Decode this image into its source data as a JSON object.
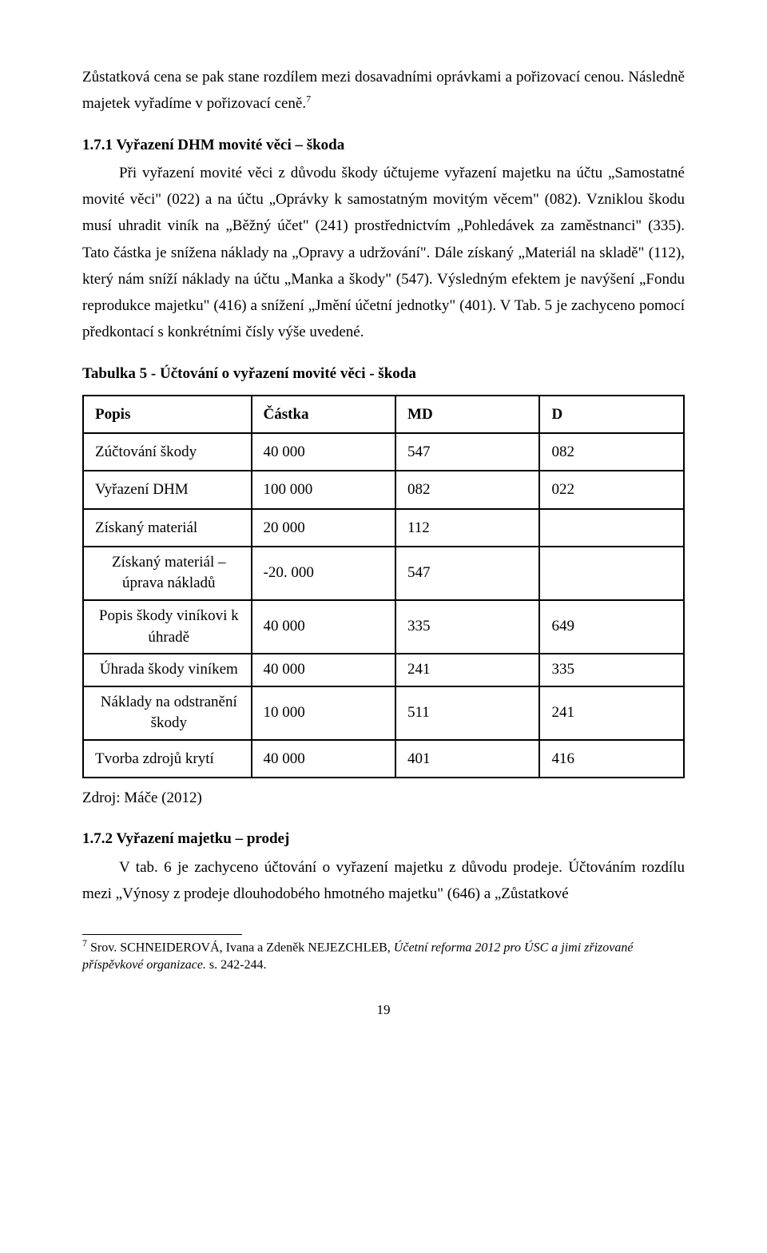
{
  "para_intro": "Zůstatková cena se pak stane rozdílem mezi dosavadními oprávkami a pořizovací cenou. Následně majetek vyřadíme v pořizovací ceně.",
  "intro_sup": "7",
  "h1": "1.7.1 Vyřazení DHM movité věci – škoda",
  "para1a": "Při vyřazení movité věci z důvodu škody účtujeme vyřazení majetku na účtu „Samostatné movité věci\" (022) a na účtu „Oprávky k samostatným movitým věcem\" (082). Vzniklou škodu musí uhradit viník na „Běžný účet\" (241) prostřednictvím „Pohledávek za zaměstnanci\" (335). Tato částka je snížena náklady na „Opravy a udržování\". Dále získaný „Materiál na skladě\" (112), který nám sníží náklady na účtu „Manka a škody\" (547). Výsledným efektem je navýšení „Fondu reprodukce majetku\" (416) a snížení „Jmění účetní jednotky\" (401). V Tab. 5 je zachyceno pomocí předkontací s konkrétními čísly výše uvedené.",
  "table_caption": "Tabulka 5 - Účtování o vyřazení movité věci - škoda",
  "table": {
    "headers": [
      "Popis",
      "Částka",
      "MD",
      "D"
    ],
    "rows": [
      {
        "popis": "Zúčtování škody",
        "castka": "40 000",
        "md": "547",
        "d": "082",
        "two": false
      },
      {
        "popis": "Vyřazení DHM",
        "castka": "100 000",
        "md": "082",
        "d": "022",
        "two": false
      },
      {
        "popis": "Získaný materiál",
        "castka": "20 000",
        "md": "112",
        "d": "",
        "two": false
      },
      {
        "popis": "Získaný materiál – úprava nákladů",
        "castka": "-20. 000",
        "md": "547",
        "d": "",
        "two": true
      },
      {
        "popis": "Popis škody viníkovi k úhradě",
        "castka": "40 000",
        "md": "335",
        "d": "649",
        "two": true
      },
      {
        "popis": "Úhrada škody viníkem",
        "castka": "40 000",
        "md": "241",
        "d": "335",
        "two": true
      },
      {
        "popis": "Náklady na odstranění škody",
        "castka": "10 000",
        "md": "511",
        "d": "241",
        "two": true
      },
      {
        "popis": "Tvorba zdrojů krytí",
        "castka": "40 000",
        "md": "401",
        "d": "416",
        "two": false
      }
    ]
  },
  "source_line": "Zdroj: Máče (2012)",
  "h2": "1.7.2 Vyřazení majetku – prodej",
  "para2": "V tab. 6 je zachyceno účtování o vyřazení majetku z důvodu prodeje. Účtováním rozdílu mezi „Výnosy z prodeje dlouhodobého hmotného majetku\" (646) a „Zůstatkové",
  "footnote_num": "7",
  "footnote_a": " Srov. SCHNEIDEROVÁ, Ivana a Zdeněk NEJEZCHLEB, ",
  "footnote_it": "Účetní reforma 2012 pro ÚSC a jimi zřizované příspěvkové organizace.",
  "footnote_b": " s. 242-244.",
  "page_num": "19"
}
